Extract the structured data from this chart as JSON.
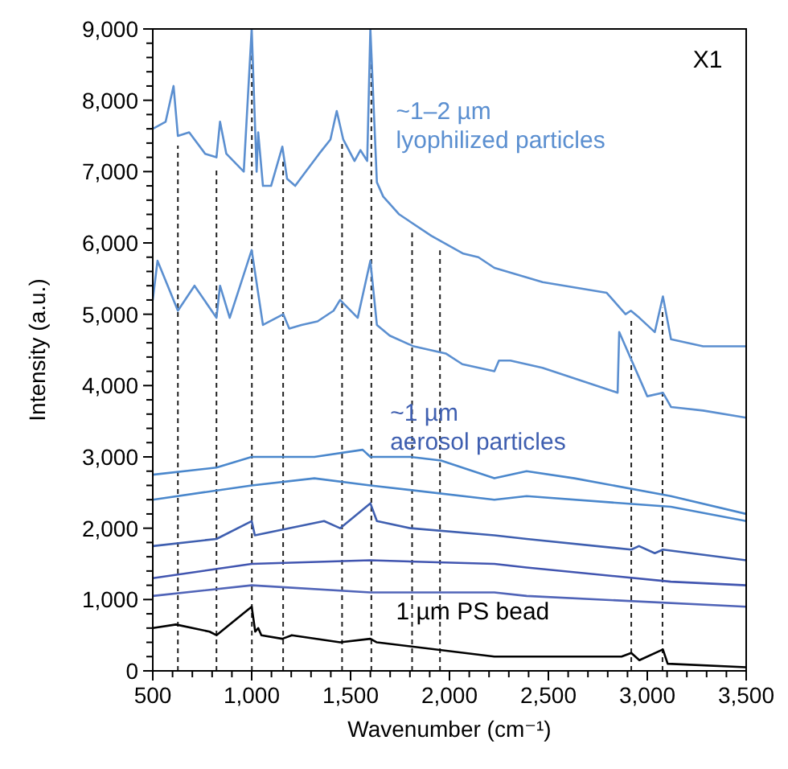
{
  "chart_data": {
    "type": "line",
    "xlabel": "Wavenumber (cm⁻¹)",
    "ylabel": "Intensity (a.u.)",
    "xlim": [
      500,
      3500
    ],
    "xticks": [
      {
        "value": 500,
        "label": "500"
      },
      {
        "value": 600,
        "label": null
      },
      {
        "value": 700,
        "label": null
      },
      {
        "value": 800,
        "label": null
      },
      {
        "value": 900,
        "label": null
      },
      {
        "value": 1000,
        "label": "1,000"
      },
      {
        "value": 1100,
        "label": null
      },
      {
        "value": 1200,
        "label": null
      },
      {
        "value": 1300,
        "label": null
      },
      {
        "value": 1400,
        "label": null
      },
      {
        "value": 1500,
        "label": "1,500"
      },
      {
        "value": 1600,
        "label": null
      },
      {
        "value": 1700,
        "label": null
      },
      {
        "value": 1800,
        "label": null
      },
      {
        "value": 1900,
        "label": null
      },
      {
        "value": 2000,
        "label": "2,000"
      },
      {
        "value": 2100,
        "label": null
      },
      {
        "value": 2200,
        "label": null
      },
      {
        "value": 2300,
        "label": null
      },
      {
        "value": 2400,
        "label": null
      },
      {
        "value": 2500,
        "label": "2,500"
      },
      {
        "value": 2600,
        "label": null
      },
      {
        "value": 2700,
        "label": null
      },
      {
        "value": 2800,
        "label": null
      },
      {
        "value": 2900,
        "label": null
      },
      {
        "value": 3000,
        "label": "3,000"
      },
      {
        "value": 3100,
        "label": null
      },
      {
        "value": 3200,
        "label": null
      },
      {
        "value": 3300,
        "label": null
      },
      {
        "value": 3400,
        "label": null
      },
      {
        "value": 3500,
        "label": "3,500"
      }
    ],
    "ylim": [
      0,
      9000
    ],
    "yticks": [
      {
        "value": 0,
        "label": "0"
      },
      {
        "value": 200,
        "label": null
      },
      {
        "value": 400,
        "label": null
      },
      {
        "value": 600,
        "label": null
      },
      {
        "value": 800,
        "label": null
      },
      {
        "value": 1000,
        "label": "1,000"
      },
      {
        "value": 1200,
        "label": null
      },
      {
        "value": 1400,
        "label": null
      },
      {
        "value": 1600,
        "label": null
      },
      {
        "value": 1800,
        "label": null
      },
      {
        "value": 2000,
        "label": "2,000"
      },
      {
        "value": 2200,
        "label": null
      },
      {
        "value": 2400,
        "label": null
      },
      {
        "value": 2600,
        "label": null
      },
      {
        "value": 2800,
        "label": null
      },
      {
        "value": 3000,
        "label": "3,000"
      },
      {
        "value": 3200,
        "label": null
      },
      {
        "value": 3400,
        "label": null
      },
      {
        "value": 3600,
        "label": null
      },
      {
        "value": 3800,
        "label": null
      },
      {
        "value": 4000,
        "label": "4,000"
      },
      {
        "value": 4200,
        "label": null
      },
      {
        "value": 4400,
        "label": null
      },
      {
        "value": 4600,
        "label": null
      },
      {
        "value": 4800,
        "label": null
      },
      {
        "value": 5000,
        "label": "5,000"
      },
      {
        "value": 5200,
        "label": null
      },
      {
        "value": 5400,
        "label": null
      },
      {
        "value": 5600,
        "label": null
      },
      {
        "value": 5800,
        "label": null
      },
      {
        "value": 6000,
        "label": "6,000"
      },
      {
        "value": 6200,
        "label": null
      },
      {
        "value": 6400,
        "label": null
      },
      {
        "value": 6600,
        "label": null
      },
      {
        "value": 6800,
        "label": null
      },
      {
        "value": 7000,
        "label": "7,000"
      },
      {
        "value": 7200,
        "label": null
      },
      {
        "value": 7400,
        "label": null
      },
      {
        "value": 7600,
        "label": null
      },
      {
        "value": 7800,
        "label": null
      },
      {
        "value": 8000,
        "label": "8,000"
      },
      {
        "value": 8200,
        "label": null
      },
      {
        "value": 8400,
        "label": null
      },
      {
        "value": 8600,
        "label": null
      },
      {
        "value": 8800,
        "label": null
      },
      {
        "value": 9000,
        "label": "9,000"
      }
    ],
    "line_style": "solid",
    "series": [
      {
        "color": "#5b8fd0",
        "x": [
          500,
          565,
          605,
          627,
          684,
          765,
          822,
          840,
          872,
          960,
          1000,
          1025,
          1033,
          1057,
          1098,
          1155,
          1179,
          1220,
          1260,
          1341,
          1398,
          1430,
          1463,
          1520,
          1550,
          1584,
          1600,
          1633,
          1665,
          1746,
          1908,
          2070,
          2146,
          2227,
          2471,
          2795,
          2890,
          2917,
          2960,
          3038,
          3079,
          3120,
          3282,
          3500
        ],
        "values": [
          7600,
          7700,
          8200,
          7500,
          7550,
          7250,
          7200,
          7700,
          7250,
          7000,
          9000,
          7000,
          7550,
          6800,
          6800,
          7350,
          6900,
          6800,
          6950,
          7250,
          7450,
          7850,
          7450,
          7150,
          7300,
          7150,
          9000,
          6850,
          6650,
          6400,
          6100,
          5850,
          5800,
          5650,
          5450,
          5300,
          5000,
          5050,
          4950,
          4750,
          5250,
          4650,
          4550,
          4550
        ]
      },
      {
        "color": "#5b8fd0",
        "x": [
          500,
          524,
          627,
          711,
          822,
          840,
          889,
          1000,
          1057,
          1160,
          1190,
          1252,
          1333,
          1414,
          1447,
          1536,
          1600,
          1633,
          1698,
          1819,
          1981,
          2065,
          2227,
          2250,
          2308,
          2470,
          2740,
          2850,
          2858,
          3000,
          3079,
          3120,
          3282,
          3500
        ],
        "values": [
          5200,
          5750,
          5050,
          5400,
          4950,
          5400,
          4950,
          5900,
          4850,
          5000,
          4800,
          4850,
          4900,
          5050,
          5200,
          4950,
          5750,
          4850,
          4700,
          4550,
          4450,
          4300,
          4200,
          4350,
          4350,
          4250,
          4000,
          3900,
          4750,
          3850,
          3900,
          3700,
          3650,
          3550
        ]
      },
      {
        "color": "#4a87cc",
        "x": [
          500,
          822,
          1000,
          1317,
          1561,
          1600,
          1803,
          1957,
          2227,
          2390,
          2632,
          3119,
          3500
        ],
        "values": [
          2750,
          2850,
          3000,
          3000,
          3100,
          3000,
          3000,
          2950,
          2700,
          2800,
          2700,
          2450,
          2200
        ]
      },
      {
        "color": "#4a87cc",
        "x": [
          500,
          1000,
          1317,
          1600,
          2227,
          2390,
          3119,
          3500
        ],
        "values": [
          2400,
          2600,
          2700,
          2600,
          2400,
          2450,
          2300,
          2100
        ]
      },
      {
        "color": "#3f5fb0",
        "x": [
          500,
          822,
          1000,
          1016,
          1366,
          1447,
          1600,
          1633,
          1803,
          2227,
          2390,
          2919,
          2958,
          3038,
          3079,
          3500
        ],
        "values": [
          1750,
          1850,
          2100,
          1900,
          2100,
          2000,
          2350,
          2100,
          2000,
          1900,
          1850,
          1700,
          1750,
          1650,
          1700,
          1550
        ]
      },
      {
        "color": "#4155b0",
        "x": [
          500,
          1000,
          1600,
          2227,
          2390,
          3119,
          3500
        ],
        "values": [
          1300,
          1500,
          1550,
          1500,
          1450,
          1250,
          1200
        ]
      },
      {
        "color": "#5064b8",
        "x": [
          500,
          1000,
          1600,
          2227,
          2390,
          3500
        ],
        "values": [
          1050,
          1200,
          1100,
          1100,
          1050,
          900
        ]
      },
      {
        "color": "#000000",
        "x": [
          500,
          617,
          787,
          822,
          1000,
          1018,
          1033,
          1049,
          1155,
          1203,
          1447,
          1600,
          1633,
          2227,
          2870,
          2919,
          2960,
          3079,
          3103,
          3500
        ],
        "values": [
          600,
          650,
          550,
          500,
          900,
          550,
          600,
          500,
          450,
          500,
          400,
          450,
          400,
          200,
          200,
          250,
          150,
          300,
          100,
          50
        ]
      }
    ],
    "ref_lines": [
      {
        "axis": "x",
        "value": 627,
        "line_style": "dashed"
      },
      {
        "axis": "x",
        "value": 822,
        "line_style": "dashed"
      },
      {
        "axis": "x",
        "value": 1001,
        "line_style": "dashed"
      },
      {
        "axis": "x",
        "value": 1159,
        "line_style": "dashed"
      },
      {
        "axis": "x",
        "value": 1457,
        "line_style": "dashed"
      },
      {
        "axis": "x",
        "value": 1605,
        "line_style": "dashed"
      },
      {
        "axis": "x",
        "value": 1811,
        "line_style": "dashed"
      },
      {
        "axis": "x",
        "value": 1952,
        "line_style": "dashed"
      },
      {
        "axis": "x",
        "value": 2919,
        "line_style": "dashed"
      },
      {
        "axis": "x",
        "value": 3077,
        "line_style": "dashed"
      }
    ],
    "annotations": [
      "X1",
      "~1–2 µm\nlyophilized particles",
      "~1 µm\naerosol particles",
      "1 µm PS bead"
    ]
  }
}
